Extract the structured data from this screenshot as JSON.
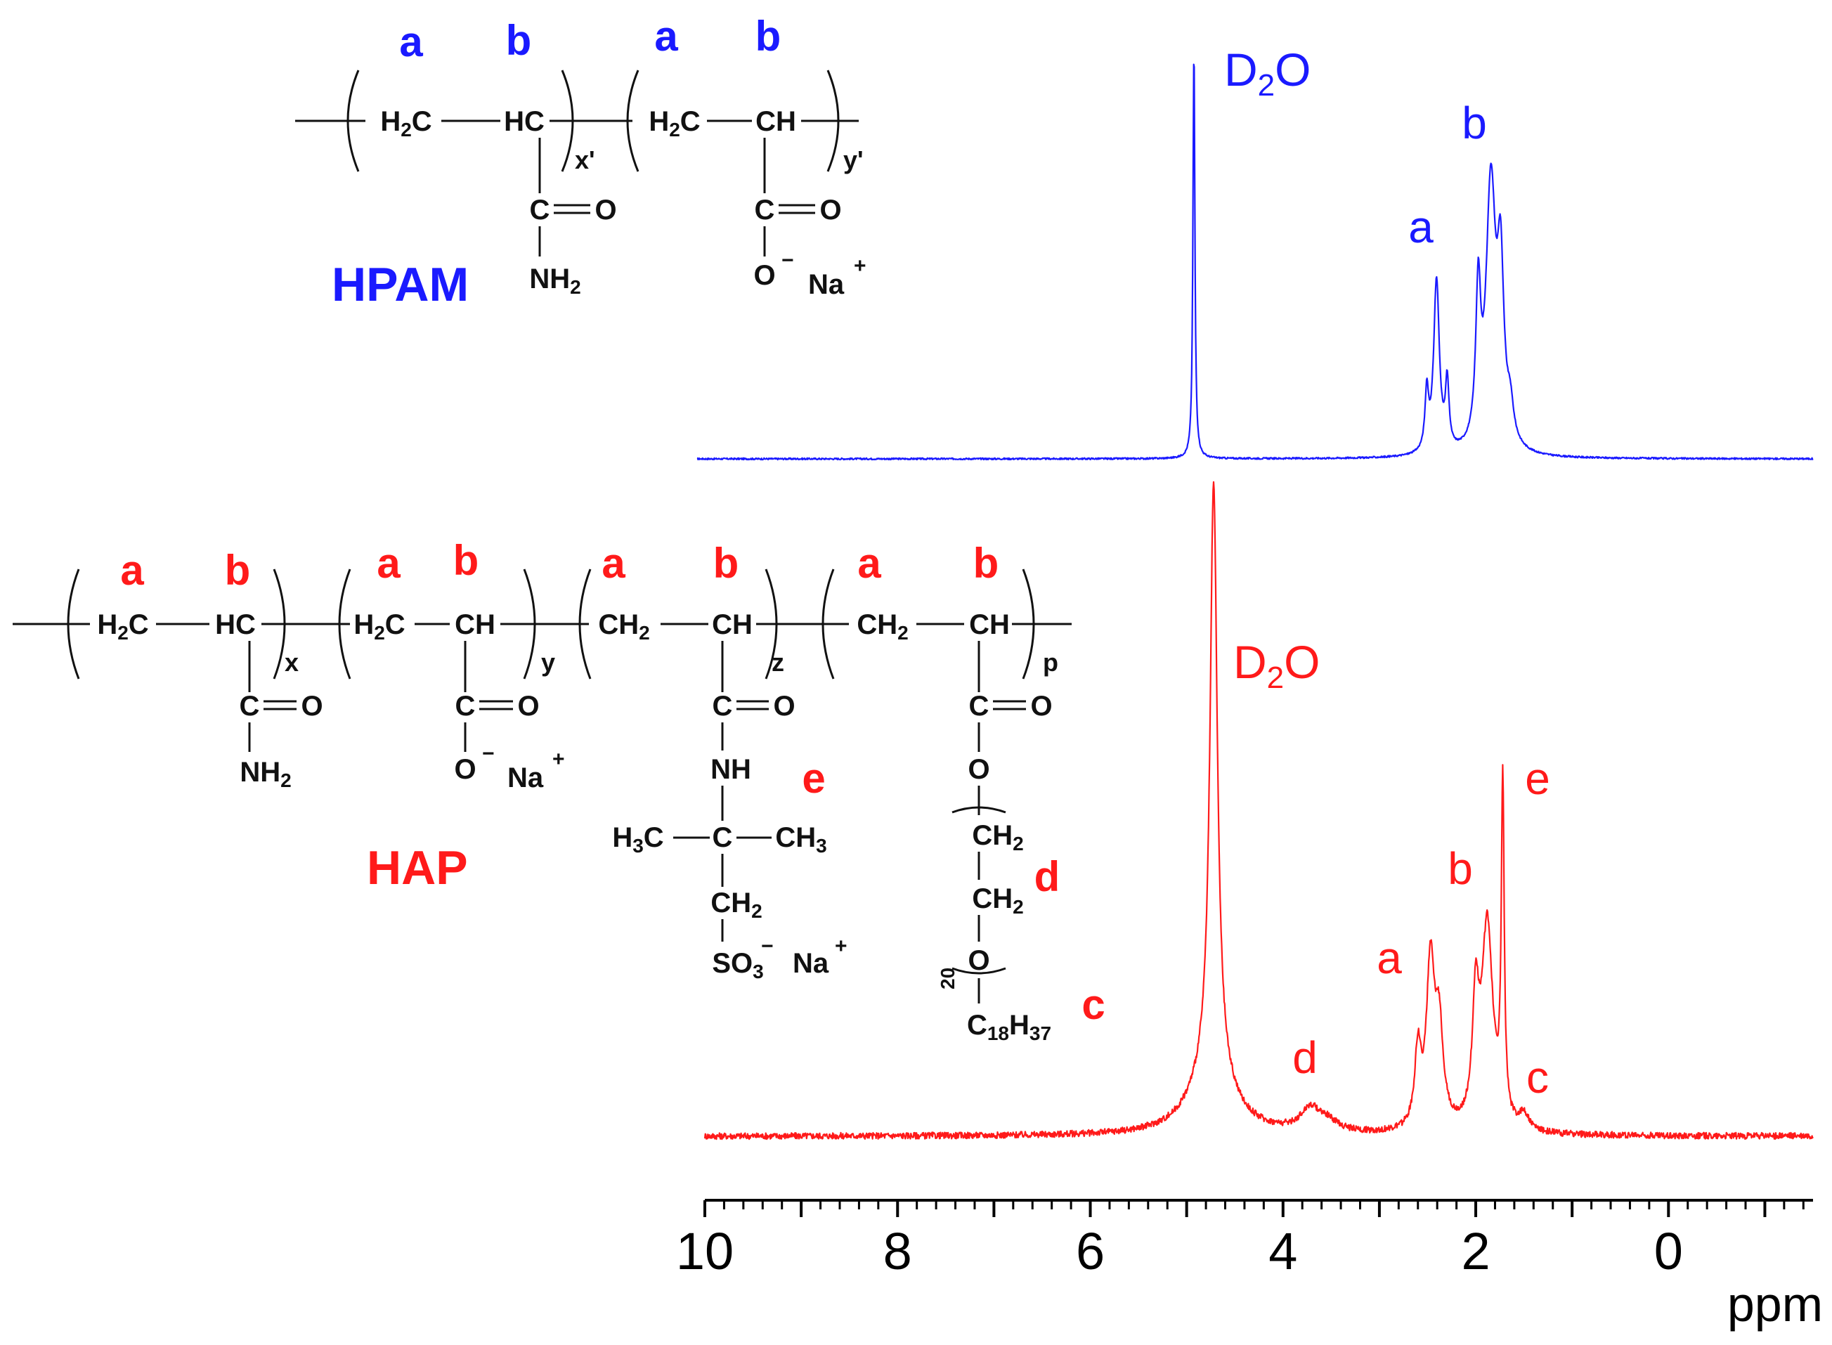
{
  "colors": {
    "hpam": "#1a1aff",
    "hap": "#ff1a1a",
    "axis": "#000000",
    "bond": "#111111"
  },
  "chart_data": {
    "type": "line",
    "title": "",
    "xlabel": "ppm",
    "ylabel": "",
    "xlim": [
      10,
      -1.5
    ],
    "x_reversed": true,
    "x_ticks": [
      10,
      8,
      6,
      4,
      2,
      0
    ],
    "x_tick_labels": [
      "10",
      "8",
      "6",
      "4",
      "2",
      "0"
    ],
    "minor_tick_step": 0.2,
    "grid": false,
    "series": [
      {
        "name": "HPAM",
        "color": "#1a1aff",
        "peaks": [
          {
            "x": 4.88,
            "height": 1.0,
            "width": 0.012
          },
          {
            "x": 2.48,
            "height": 0.14,
            "width": 0.022
          },
          {
            "x": 2.38,
            "height": 0.42,
            "width": 0.035
          },
          {
            "x": 2.27,
            "height": 0.16,
            "width": 0.022
          },
          {
            "x": 1.95,
            "height": 0.36,
            "width": 0.03
          },
          {
            "x": 1.82,
            "height": 0.64,
            "width": 0.06
          },
          {
            "x": 1.72,
            "height": 0.4,
            "width": 0.04
          },
          {
            "x": 1.62,
            "height": 0.08,
            "width": 0.04
          }
        ],
        "peak_labels": [
          {
            "text": "a",
            "x": 2.38
          },
          {
            "text": "b",
            "x": 1.82
          }
        ],
        "solvent_label": {
          "main": "D",
          "sub": "2",
          "tail": "O"
        }
      },
      {
        "name": "HAP",
        "color": "#ff1a1a",
        "peaks": [
          {
            "x": 4.72,
            "height": 1.1,
            "width": 0.045
          },
          {
            "x": 4.74,
            "height": 0.12,
            "width": 0.25
          },
          {
            "x": 3.72,
            "height": 0.04,
            "width": 0.12
          },
          {
            "x": 3.55,
            "height": 0.02,
            "width": 0.15
          },
          {
            "x": 2.6,
            "height": 0.14,
            "width": 0.04
          },
          {
            "x": 2.47,
            "height": 0.3,
            "width": 0.05
          },
          {
            "x": 2.38,
            "height": 0.18,
            "width": 0.05
          },
          {
            "x": 2.0,
            "height": 0.22,
            "width": 0.04
          },
          {
            "x": 1.88,
            "height": 0.38,
            "width": 0.07
          },
          {
            "x": 1.72,
            "height": 0.62,
            "width": 0.018
          },
          {
            "x": 1.5,
            "height": 0.03,
            "width": 0.06
          }
        ],
        "peak_labels": [
          {
            "text": "d",
            "x": 3.8
          },
          {
            "text": "a",
            "x": 2.9
          },
          {
            "text": "b",
            "x": 2.1
          },
          {
            "text": "e",
            "x": 1.4
          },
          {
            "text": "c",
            "x": 1.4
          }
        ],
        "solvent_label": {
          "main": "D",
          "sub": "2",
          "tail": "O"
        }
      }
    ]
  },
  "structures": {
    "hpam": {
      "name": "HPAM",
      "site_labels": [
        "a",
        "b",
        "a",
        "b"
      ],
      "unit1": {
        "left": "H2C",
        "right": "HC",
        "pendant_top": "C",
        "pendant_o": "O",
        "pendant_bottom": "NH2",
        "subscript": "x'"
      },
      "unit2": {
        "left": "H2C",
        "right": "CH",
        "pendant_top": "C",
        "pendant_o": "O",
        "pendant_bottom": "O",
        "charge": "−",
        "counterion": "Na",
        "counter_charge": "+",
        "subscript": "y'"
      }
    },
    "hap": {
      "name": "HAP",
      "site_labels": [
        "a",
        "b",
        "a",
        "b",
        "a",
        "b",
        "a",
        "b"
      ],
      "unit1": {
        "left": "H2C",
        "right": "HC",
        "pendant_bottom": "NH2",
        "subscript": "x"
      },
      "unit2": {
        "left": "H2C",
        "right": "CH",
        "pendant_bottom": "O",
        "charge": "−",
        "counterion": "Na",
        "counter_charge": "+",
        "subscript": "y"
      },
      "unit3": {
        "left": "CH2",
        "right": "CH",
        "nh": "NH",
        "quat_c": "C",
        "methyl_left": "H3C",
        "methyl_right": "CH3",
        "ch2": "CH2",
        "so3": "SO3",
        "charge": "−",
        "counterion": "Na",
        "counter_charge": "+",
        "subscript": "z",
        "e_label": "e"
      },
      "unit4": {
        "left": "CH2",
        "right": "CH",
        "ester_o": "O",
        "eo1": "CH2",
        "eo2": "CH2",
        "eo_o": "O",
        "eo_n": "20",
        "tail": "C18H37",
        "subscript": "p",
        "d_label": "d",
        "c_label": "c"
      },
      "carbonyl_c": "C",
      "carbonyl_o": "O"
    }
  }
}
